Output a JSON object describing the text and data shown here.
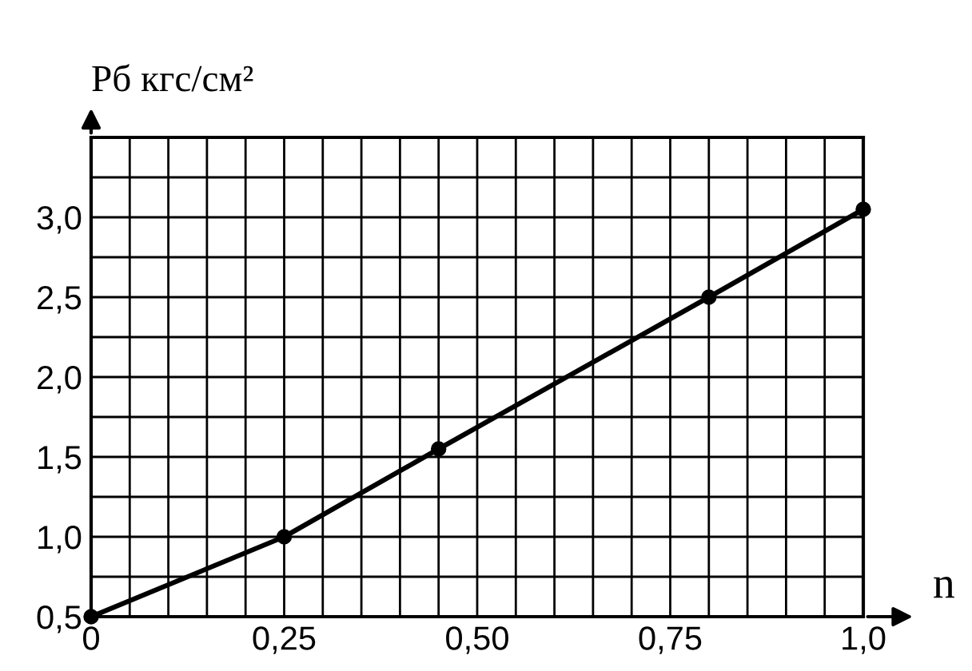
{
  "chart_data": {
    "type": "line",
    "xlabel": "n",
    "ylabel": "Рб кгс/см²",
    "x": [
      0,
      0.25,
      0.45,
      0.8,
      1.0
    ],
    "series": [
      {
        "color": "#000000",
        "values": [
          0.5,
          1.0,
          1.55,
          2.5,
          3.05
        ]
      }
    ],
    "xlim": [
      0,
      1.0
    ],
    "ylim": [
      0.5,
      3.5
    ],
    "xticks": [
      0,
      {
        "value": 0.25,
        "label": "0,25"
      },
      {
        "value": 0.5,
        "label": "0,50"
      },
      {
        "value": 0.75,
        "label": "0,75"
      },
      {
        "value": 1.0,
        "label": "1,0"
      }
    ],
    "yticks": [
      {
        "value": 0.5,
        "label": "0,5"
      },
      {
        "value": 1.0,
        "label": "1,0"
      },
      {
        "value": 1.5,
        "label": "1,5"
      },
      {
        "value": 2.0,
        "label": "2,0"
      },
      {
        "value": 2.5,
        "label": "2,5"
      },
      {
        "value": 3.0,
        "label": "3,0"
      }
    ],
    "grid": true,
    "marker": "circle",
    "line_style": "solid",
    "legend": false
  }
}
